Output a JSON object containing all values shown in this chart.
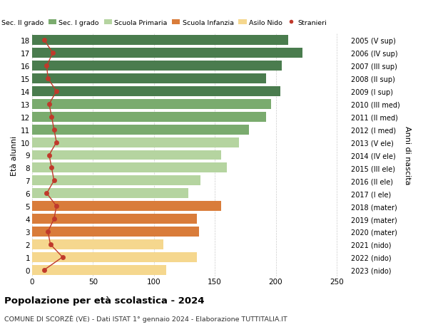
{
  "ages": [
    18,
    17,
    16,
    15,
    14,
    13,
    12,
    11,
    10,
    9,
    8,
    7,
    6,
    5,
    4,
    3,
    2,
    1,
    0
  ],
  "right_labels": [
    "2005 (V sup)",
    "2006 (IV sup)",
    "2007 (III sup)",
    "2008 (II sup)",
    "2009 (I sup)",
    "2010 (III med)",
    "2011 (II med)",
    "2012 (I med)",
    "2013 (V ele)",
    "2014 (IV ele)",
    "2015 (III ele)",
    "2016 (II ele)",
    "2017 (I ele)",
    "2018 (mater)",
    "2019 (mater)",
    "2020 (mater)",
    "2021 (nido)",
    "2022 (nido)",
    "2023 (nido)"
  ],
  "bar_values": [
    210,
    222,
    205,
    192,
    204,
    196,
    192,
    178,
    170,
    155,
    160,
    138,
    128,
    155,
    135,
    137,
    108,
    135,
    110
  ],
  "bar_colors": [
    "#4a7c4e",
    "#4a7c4e",
    "#4a7c4e",
    "#4a7c4e",
    "#4a7c4e",
    "#7aab6e",
    "#7aab6e",
    "#7aab6e",
    "#b5d4a0",
    "#b5d4a0",
    "#b5d4a0",
    "#b5d4a0",
    "#b5d4a0",
    "#d97c3a",
    "#d97c3a",
    "#d97c3a",
    "#f5d78e",
    "#f5d78e",
    "#f5d78e"
  ],
  "stranieri_values": [
    10,
    17,
    12,
    13,
    20,
    14,
    16,
    18,
    20,
    14,
    16,
    18,
    12,
    20,
    18,
    13,
    15,
    25,
    10
  ],
  "title": "Popolazione per età scolastica - 2024",
  "subtitle": "COMUNE DI SCORZÈ (VE) - Dati ISTAT 1° gennaio 2024 - Elaborazione TUTTITALIA.IT",
  "ylabel_left": "Età alunni",
  "ylabel_right": "Anni di nascita",
  "xlim": [
    0,
    260
  ],
  "xticks": [
    0,
    50,
    100,
    150,
    200,
    250
  ],
  "legend_labels": [
    "Sec. II grado",
    "Sec. I grado",
    "Scuola Primaria",
    "Scuola Infanzia",
    "Asilo Nido",
    "Stranieri"
  ],
  "legend_colors": [
    "#4a7c4e",
    "#7aab6e",
    "#b5d4a0",
    "#d97c3a",
    "#f5d78e",
    "#c0392b"
  ],
  "bar_height": 0.78,
  "bg_color": "#ffffff",
  "grid_color": "#cccccc"
}
